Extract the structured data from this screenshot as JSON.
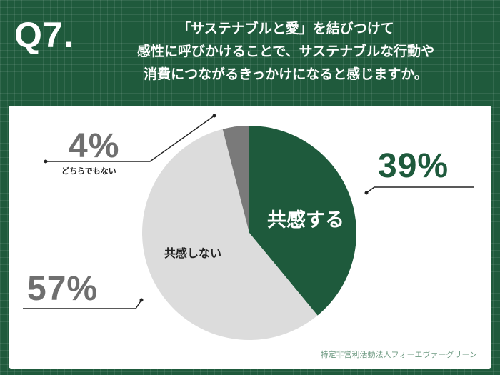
{
  "question": {
    "number": "Q7.",
    "lines": [
      "「サステナブルと愛」を結びつけて",
      "感性に呼びかけることで、サステナブルな行動や",
      "消費につながるきっかけになると感じますか。"
    ]
  },
  "colors": {
    "background": "#1f5a3c",
    "slice_agree": "#1e5a3c",
    "slice_disagree": "#dcdcdc",
    "slice_neither": "#7a7a7a",
    "label_text": "#6f6f6f"
  },
  "chart_data": {
    "type": "pie",
    "start": "12 o'clock, clockwise",
    "slices": [
      {
        "label": "共感する",
        "value": 39,
        "value_label": "39%",
        "color": "#1e5a3c",
        "label_color": "#ffffff",
        "label_inside": true
      },
      {
        "label": "共感しない",
        "value": 57,
        "value_label": "57%",
        "color": "#dcdcdc",
        "label_color": "#222222",
        "label_inside": true
      },
      {
        "label": "どちらでもない",
        "value": 4,
        "value_label": "4%",
        "color": "#7a7a7a",
        "label_color": "#222222",
        "label_inside": false
      }
    ]
  },
  "credit": "特定非営利活動法人フォーエヴァーグリーン"
}
